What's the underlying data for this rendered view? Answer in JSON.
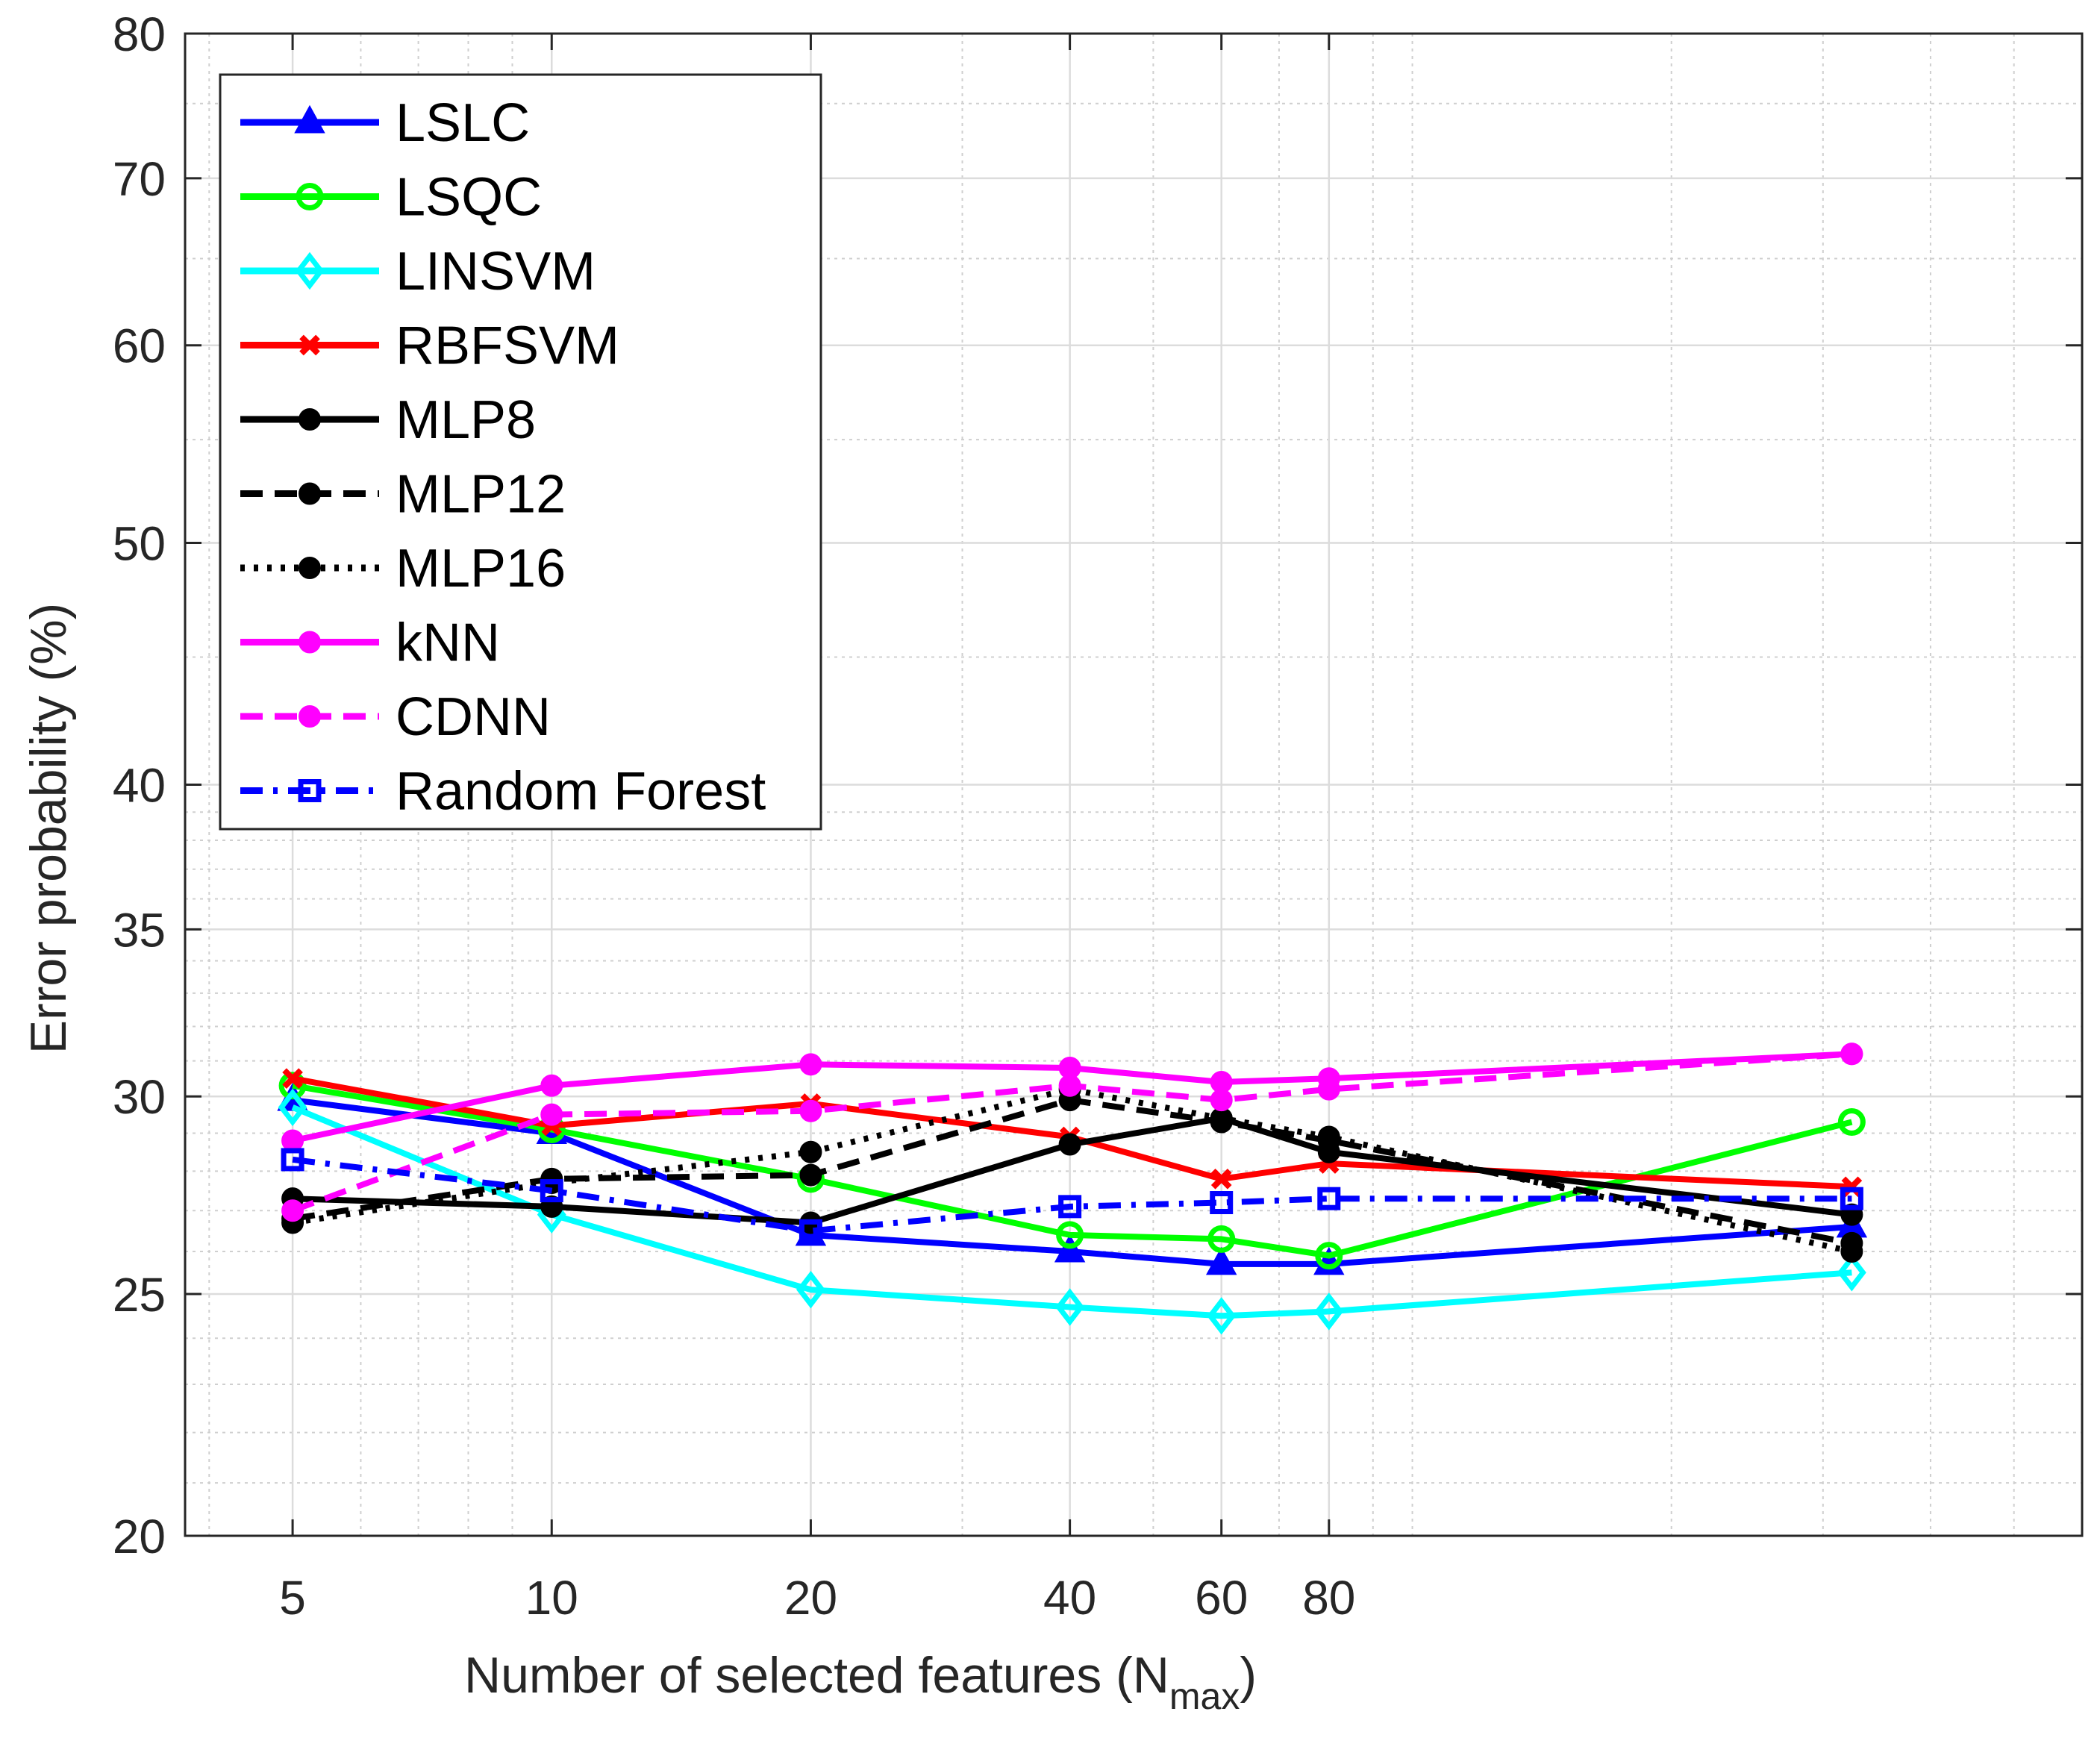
{
  "chart_data": {
    "type": "line",
    "xscale": "log",
    "yscale": "log",
    "x": [
      5,
      10,
      20,
      40,
      60,
      80,
      324
    ],
    "xlim": [
      3.75,
      600
    ],
    "ylim": [
      20,
      80
    ],
    "xticks": [
      5,
      10,
      20,
      40,
      60,
      80
    ],
    "xticklabels": [
      "5",
      "10",
      "20",
      "40",
      "60",
      "80"
    ],
    "yticks": [
      20,
      25,
      30,
      35,
      40,
      50,
      60,
      70,
      80
    ],
    "yticklabels": [
      "20",
      "25",
      "30",
      "35",
      "40",
      "50",
      "60",
      "70",
      "80"
    ],
    "xlabel": "Number of selected features (N",
    "xlabel_sub": "max",
    "xlabel_end": ")",
    "ylabel": "Error probability (%)",
    "grid": true,
    "legend_position": "top-left",
    "series": [
      {
        "name": "LSLC",
        "color": "#0000ff",
        "dash": "solid",
        "marker": "triangle",
        "values": [
          29.9,
          29.0,
          26.4,
          26.0,
          25.7,
          25.7,
          26.6
        ]
      },
      {
        "name": "LSQC",
        "color": "#00ff00",
        "dash": "solid",
        "marker": "circle-open",
        "values": [
          30.3,
          29.1,
          27.8,
          26.4,
          26.3,
          25.9,
          29.3
        ]
      },
      {
        "name": "LINSVM",
        "color": "#00ffff",
        "dash": "solid",
        "marker": "diamond",
        "values": [
          29.7,
          26.9,
          25.1,
          24.7,
          24.5,
          24.6,
          25.5
        ]
      },
      {
        "name": "RBFSVM",
        "color": "#ff0000",
        "dash": "solid",
        "marker": "x",
        "values": [
          30.5,
          29.2,
          29.8,
          28.9,
          27.8,
          28.2,
          27.6
        ]
      },
      {
        "name": "MLP8",
        "color": "#000000",
        "dash": "solid",
        "marker": "dot",
        "values": [
          27.3,
          27.1,
          26.7,
          28.7,
          29.4,
          28.5,
          26.9
        ]
      },
      {
        "name": "MLP12",
        "color": "#000000",
        "dash": "dashed",
        "marker": "dot",
        "values": [
          26.8,
          27.8,
          27.9,
          29.9,
          29.3,
          28.8,
          26.2
        ]
      },
      {
        "name": "MLP16",
        "color": "#000000",
        "dash": "dotted",
        "marker": "dot",
        "values": [
          26.7,
          27.7,
          28.5,
          30.2,
          29.4,
          28.9,
          26.0
        ]
      },
      {
        "name": "kNN",
        "color": "#ff00ff",
        "dash": "solid",
        "marker": "dot",
        "values": [
          28.8,
          30.3,
          30.9,
          30.8,
          30.4,
          30.5,
          31.2
        ]
      },
      {
        "name": "CDNN",
        "color": "#ff00ff",
        "dash": "dashed",
        "marker": "dot",
        "values": [
          27.0,
          29.5,
          29.6,
          30.3,
          29.9,
          30.2,
          31.2
        ]
      },
      {
        "name": "Random Forest",
        "color": "#0000ff",
        "dash": "dashdot",
        "marker": "square",
        "values": [
          28.3,
          27.5,
          26.5,
          27.1,
          27.2,
          27.3,
          27.3
        ]
      }
    ]
  }
}
